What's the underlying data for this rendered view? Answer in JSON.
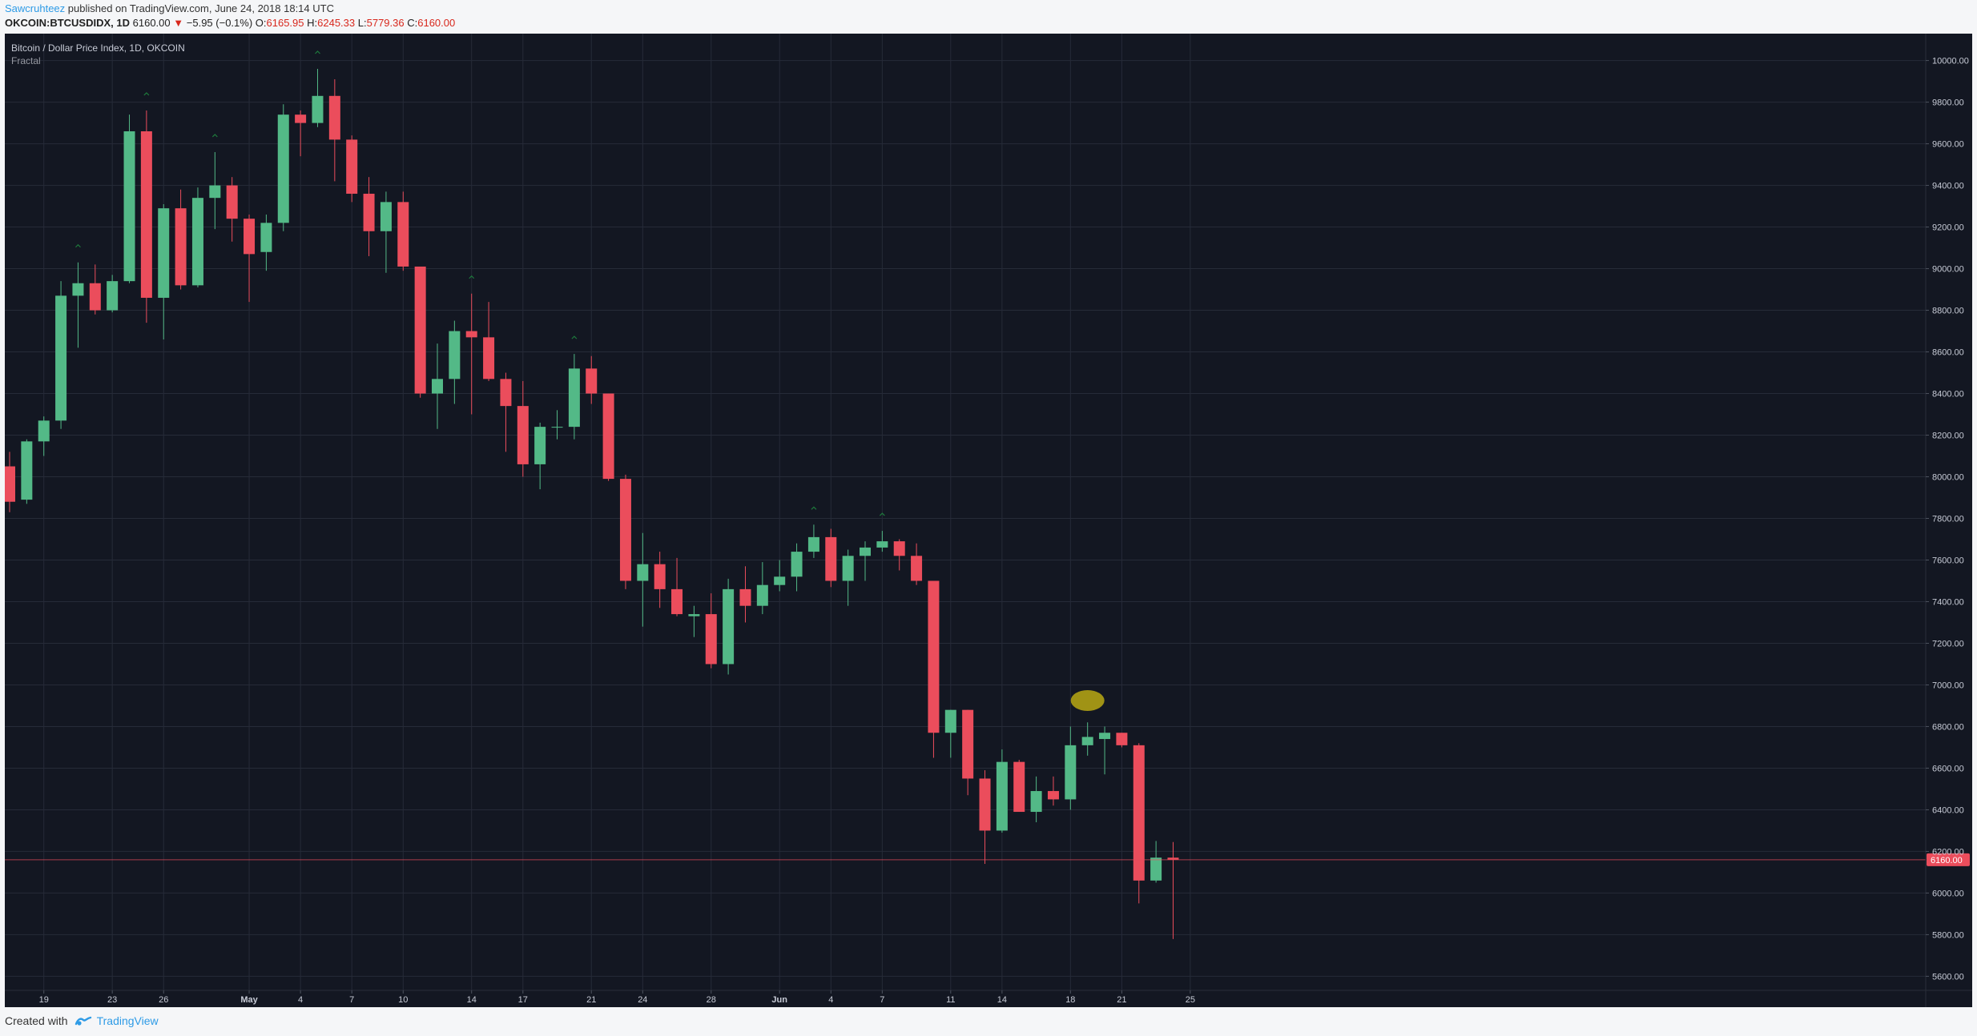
{
  "header": {
    "author": "Sawcruhteez",
    "published_text": " published on TradingView.com, June 24, 2018 18:14 UTC",
    "symbol": "OKCOIN:BTCUSDIDX, 1D",
    "last": "6160.00",
    "change": "−5.95 (−0.1%)",
    "o_label": "O:",
    "o_value": "6165.95",
    "h_label": "H:",
    "h_value": "6245.33",
    "l_label": "L:",
    "l_value": "5779.36",
    "c_label": "C:",
    "c_value": "6160.00"
  },
  "legend": {
    "title": "Bitcoin / Dollar Price Index, 1D, OKCOIN",
    "indicator": "Fractal"
  },
  "footer": {
    "created_with": "Created with",
    "brand": "TradingView"
  },
  "colors": {
    "background": "#131722",
    "grid": "#262b38",
    "up": "#53b987",
    "down": "#eb4d5c",
    "fractal": "#1e7a3c",
    "text": "#c7cbd6",
    "price_line": "#eb4d5c",
    "highlight": "#bfae12"
  },
  "chart_data": {
    "type": "candlestick",
    "title": "Bitcoin / Dollar Price Index, 1D, OKCOIN",
    "indicator": "Fractal",
    "ylim": [
      5540,
      10060
    ],
    "y_ticks": [
      5600,
      5800,
      6000,
      6200,
      6400,
      6600,
      6800,
      7000,
      7200,
      7400,
      7600,
      7800,
      8000,
      8200,
      8400,
      8600,
      8800,
      9000,
      9200,
      9400,
      9600,
      9800,
      10000
    ],
    "y_tick_labels": [
      "5600.00",
      "5800.00",
      "6000.00",
      "6200.00",
      "6400.00",
      "6600.00",
      "6800.00",
      "7000.00",
      "7200.00",
      "7400.00",
      "7600.00",
      "7800.00",
      "8000.00",
      "8200.00",
      "8400.00",
      "8600.00",
      "8800.00",
      "9000.00",
      "9200.00",
      "9400.00",
      "9600.00",
      "9800.00",
      "10000.00"
    ],
    "x_ticks": [
      {
        "date": "2018-04-19",
        "label": "19"
      },
      {
        "date": "2018-04-23",
        "label": "23"
      },
      {
        "date": "2018-04-26",
        "label": "26"
      },
      {
        "date": "2018-05-01",
        "label": "May"
      },
      {
        "date": "2018-05-04",
        "label": "4"
      },
      {
        "date": "2018-05-07",
        "label": "7"
      },
      {
        "date": "2018-05-10",
        "label": "10"
      },
      {
        "date": "2018-05-14",
        "label": "14"
      },
      {
        "date": "2018-05-17",
        "label": "17"
      },
      {
        "date": "2018-05-21",
        "label": "21"
      },
      {
        "date": "2018-05-24",
        "label": "24"
      },
      {
        "date": "2018-05-28",
        "label": "28"
      },
      {
        "date": "2018-06-01",
        "label": "Jun"
      },
      {
        "date": "2018-06-04",
        "label": "4"
      },
      {
        "date": "2018-06-07",
        "label": "7"
      },
      {
        "date": "2018-06-11",
        "label": "11"
      },
      {
        "date": "2018-06-14",
        "label": "14"
      },
      {
        "date": "2018-06-18",
        "label": "18"
      },
      {
        "date": "2018-06-21",
        "label": "21"
      },
      {
        "date": "2018-06-25",
        "label": "25"
      }
    ],
    "last_price": 6160.0,
    "last_price_label": "6160.00",
    "candles": [
      {
        "date": "2018-04-17",
        "o": 8050,
        "h": 8120,
        "l": 7830,
        "c": 7880
      },
      {
        "date": "2018-04-18",
        "o": 7890,
        "h": 8180,
        "l": 7870,
        "c": 8170
      },
      {
        "date": "2018-04-19",
        "o": 8170,
        "h": 8290,
        "l": 8100,
        "c": 8270
      },
      {
        "date": "2018-04-20",
        "o": 8270,
        "h": 8940,
        "l": 8230,
        "c": 8870
      },
      {
        "date": "2018-04-21",
        "o": 8870,
        "h": 9030,
        "l": 8620,
        "c": 8930
      },
      {
        "date": "2018-04-22",
        "o": 8930,
        "h": 9020,
        "l": 8780,
        "c": 8800
      },
      {
        "date": "2018-04-23",
        "o": 8800,
        "h": 8970,
        "l": 8790,
        "c": 8940
      },
      {
        "date": "2018-04-24",
        "o": 8940,
        "h": 9740,
        "l": 8930,
        "c": 9660
      },
      {
        "date": "2018-04-25",
        "o": 9660,
        "h": 9760,
        "l": 8740,
        "c": 8860
      },
      {
        "date": "2018-04-26",
        "o": 8860,
        "h": 9310,
        "l": 8660,
        "c": 9290
      },
      {
        "date": "2018-04-27",
        "o": 9290,
        "h": 9380,
        "l": 8900,
        "c": 8920
      },
      {
        "date": "2018-04-28",
        "o": 8920,
        "h": 9390,
        "l": 8910,
        "c": 9340
      },
      {
        "date": "2018-04-29",
        "o": 9340,
        "h": 9560,
        "l": 9190,
        "c": 9400
      },
      {
        "date": "2018-04-30",
        "o": 9400,
        "h": 9440,
        "l": 9130,
        "c": 9240
      },
      {
        "date": "2018-05-01",
        "o": 9240,
        "h": 9260,
        "l": 8840,
        "c": 9070
      },
      {
        "date": "2018-05-02",
        "o": 9080,
        "h": 9260,
        "l": 8990,
        "c": 9220
      },
      {
        "date": "2018-05-03",
        "o": 9220,
        "h": 9790,
        "l": 9180,
        "c": 9740
      },
      {
        "date": "2018-05-04",
        "o": 9740,
        "h": 9760,
        "l": 9540,
        "c": 9700
      },
      {
        "date": "2018-05-05",
        "o": 9700,
        "h": 9960,
        "l": 9680,
        "c": 9830
      },
      {
        "date": "2018-05-06",
        "o": 9830,
        "h": 9910,
        "l": 9420,
        "c": 9620
      },
      {
        "date": "2018-05-07",
        "o": 9620,
        "h": 9640,
        "l": 9320,
        "c": 9360
      },
      {
        "date": "2018-05-08",
        "o": 9360,
        "h": 9440,
        "l": 9060,
        "c": 9180
      },
      {
        "date": "2018-05-09",
        "o": 9180,
        "h": 9370,
        "l": 8980,
        "c": 9320
      },
      {
        "date": "2018-05-10",
        "o": 9320,
        "h": 9370,
        "l": 8990,
        "c": 9010
      },
      {
        "date": "2018-05-11",
        "o": 9010,
        "h": 9010,
        "l": 8380,
        "c": 8400
      },
      {
        "date": "2018-05-12",
        "o": 8400,
        "h": 8640,
        "l": 8230,
        "c": 8470
      },
      {
        "date": "2018-05-13",
        "o": 8470,
        "h": 8750,
        "l": 8350,
        "c": 8700
      },
      {
        "date": "2018-05-14",
        "o": 8700,
        "h": 8880,
        "l": 8300,
        "c": 8670
      },
      {
        "date": "2018-05-15",
        "o": 8670,
        "h": 8840,
        "l": 8460,
        "c": 8470
      },
      {
        "date": "2018-05-16",
        "o": 8470,
        "h": 8500,
        "l": 8120,
        "c": 8340
      },
      {
        "date": "2018-05-17",
        "o": 8340,
        "h": 8460,
        "l": 8000,
        "c": 8060
      },
      {
        "date": "2018-05-18",
        "o": 8060,
        "h": 8260,
        "l": 7940,
        "c": 8240
      },
      {
        "date": "2018-05-19",
        "o": 8240,
        "h": 8320,
        "l": 8180,
        "c": 8240
      },
      {
        "date": "2018-05-20",
        "o": 8240,
        "h": 8590,
        "l": 8180,
        "c": 8520
      },
      {
        "date": "2018-05-21",
        "o": 8520,
        "h": 8580,
        "l": 8350,
        "c": 8400
      },
      {
        "date": "2018-05-22",
        "o": 8400,
        "h": 8400,
        "l": 7980,
        "c": 7990
      },
      {
        "date": "2018-05-23",
        "o": 7990,
        "h": 8010,
        "l": 7460,
        "c": 7500
      },
      {
        "date": "2018-05-24",
        "o": 7500,
        "h": 7730,
        "l": 7280,
        "c": 7580
      },
      {
        "date": "2018-05-25",
        "o": 7580,
        "h": 7640,
        "l": 7370,
        "c": 7460
      },
      {
        "date": "2018-05-26",
        "o": 7460,
        "h": 7610,
        "l": 7330,
        "c": 7340
      },
      {
        "date": "2018-05-27",
        "o": 7330,
        "h": 7380,
        "l": 7230,
        "c": 7340
      },
      {
        "date": "2018-05-28",
        "o": 7340,
        "h": 7440,
        "l": 7080,
        "c": 7100
      },
      {
        "date": "2018-05-29",
        "o": 7100,
        "h": 7510,
        "l": 7050,
        "c": 7460
      },
      {
        "date": "2018-05-30",
        "o": 7460,
        "h": 7570,
        "l": 7300,
        "c": 7380
      },
      {
        "date": "2018-05-31",
        "o": 7380,
        "h": 7590,
        "l": 7340,
        "c": 7480
      },
      {
        "date": "2018-06-01",
        "o": 7480,
        "h": 7600,
        "l": 7450,
        "c": 7520
      },
      {
        "date": "2018-06-02",
        "o": 7520,
        "h": 7680,
        "l": 7450,
        "c": 7640
      },
      {
        "date": "2018-06-03",
        "o": 7640,
        "h": 7770,
        "l": 7610,
        "c": 7710
      },
      {
        "date": "2018-06-04",
        "o": 7710,
        "h": 7750,
        "l": 7470,
        "c": 7500
      },
      {
        "date": "2018-06-05",
        "o": 7500,
        "h": 7650,
        "l": 7380,
        "c": 7620
      },
      {
        "date": "2018-06-06",
        "o": 7620,
        "h": 7690,
        "l": 7500,
        "c": 7660
      },
      {
        "date": "2018-06-07",
        "o": 7660,
        "h": 7740,
        "l": 7640,
        "c": 7690
      },
      {
        "date": "2018-06-08",
        "o": 7690,
        "h": 7700,
        "l": 7550,
        "c": 7620
      },
      {
        "date": "2018-06-09",
        "o": 7620,
        "h": 7680,
        "l": 7480,
        "c": 7500
      },
      {
        "date": "2018-06-10",
        "o": 7500,
        "h": 7500,
        "l": 6650,
        "c": 6770
      },
      {
        "date": "2018-06-11",
        "o": 6770,
        "h": 6880,
        "l": 6650,
        "c": 6880
      },
      {
        "date": "2018-06-12",
        "o": 6880,
        "h": 6880,
        "l": 6470,
        "c": 6550
      },
      {
        "date": "2018-06-13",
        "o": 6550,
        "h": 6590,
        "l": 6140,
        "c": 6300
      },
      {
        "date": "2018-06-14",
        "o": 6300,
        "h": 6690,
        "l": 6290,
        "c": 6630
      },
      {
        "date": "2018-06-15",
        "o": 6630,
        "h": 6640,
        "l": 6390,
        "c": 6390
      },
      {
        "date": "2018-06-16",
        "o": 6390,
        "h": 6560,
        "l": 6340,
        "c": 6490
      },
      {
        "date": "2018-06-17",
        "o": 6490,
        "h": 6560,
        "l": 6420,
        "c": 6450
      },
      {
        "date": "2018-06-18",
        "o": 6450,
        "h": 6800,
        "l": 6400,
        "c": 6710
      },
      {
        "date": "2018-06-19",
        "o": 6710,
        "h": 6820,
        "l": 6660,
        "c": 6750
      },
      {
        "date": "2018-06-20",
        "o": 6740,
        "h": 6800,
        "l": 6570,
        "c": 6770
      },
      {
        "date": "2018-06-21",
        "o": 6770,
        "h": 6770,
        "l": 6700,
        "c": 6710
      },
      {
        "date": "2018-06-22",
        "o": 6710,
        "h": 6720,
        "l": 5950,
        "c": 6060
      },
      {
        "date": "2018-06-23",
        "o": 6060,
        "h": 6250,
        "l": 6050,
        "c": 6170
      },
      {
        "date": "2018-06-24",
        "o": 6170,
        "h": 6245,
        "l": 5779,
        "c": 6160
      }
    ],
    "fractal_up_dates": [
      "2018-04-21",
      "2018-04-25",
      "2018-04-29",
      "2018-05-05",
      "2018-05-14",
      "2018-05-20",
      "2018-06-03",
      "2018-06-07"
    ],
    "highlight": {
      "date": "2018-06-19",
      "price": 6925
    }
  }
}
